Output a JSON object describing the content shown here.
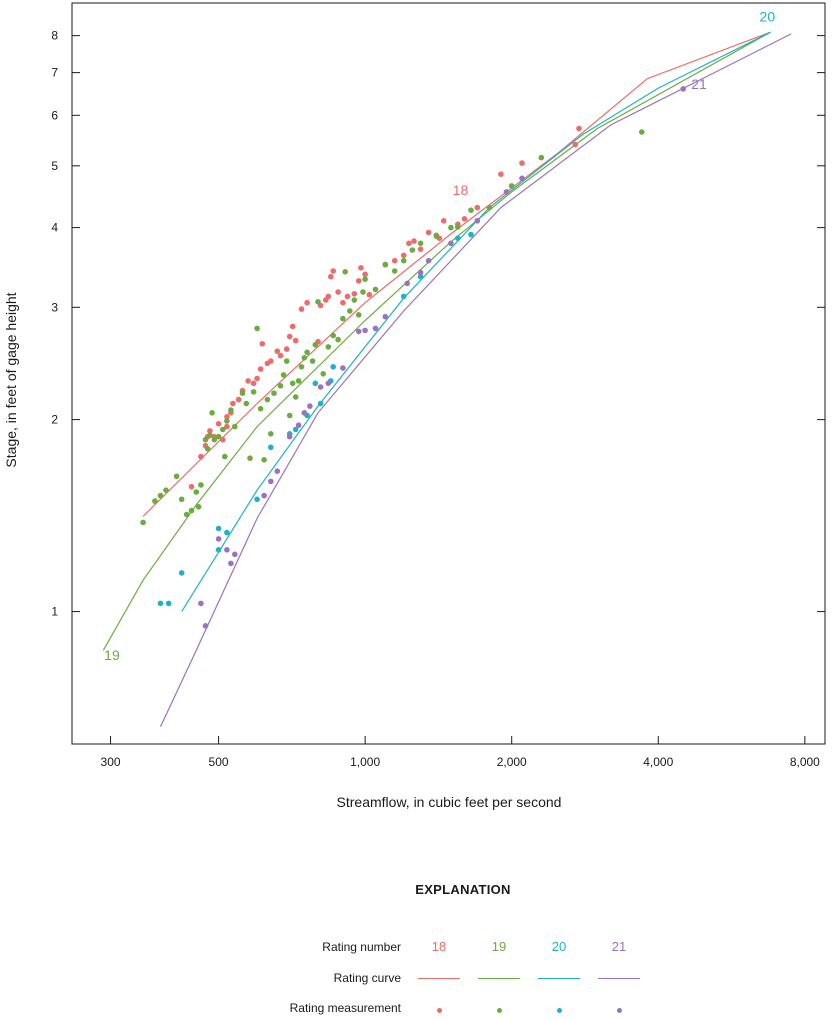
{
  "colors": {
    "18": "#ef6a6a",
    "19": "#6aac3e",
    "20": "#1fb1c7",
    "21": "#9b72c0",
    "axis": "#1a1a1a",
    "tick": "#1a1a1a"
  },
  "chart_data": {
    "type": "scatter",
    "xlabel": "Streamflow, in cubic feet per second",
    "ylabel": "Stage, in  feet of gage height",
    "x_scale": "log",
    "y_scale": "log",
    "xlim": [
      250,
      8800
    ],
    "ylim": [
      0.62,
      9.0
    ],
    "grid": false,
    "x_tick_labels": [
      {
        "value": 300,
        "label": "300"
      },
      {
        "value": 500,
        "label": "500"
      },
      {
        "value": 1000,
        "label": "1,000"
      },
      {
        "value": 2000,
        "label": "2,000"
      },
      {
        "value": 4000,
        "label": "4,000"
      },
      {
        "value": 8000,
        "label": "8,000"
      }
    ],
    "y_tick_labels": [
      {
        "value": 1,
        "label": "1"
      },
      {
        "value": 2,
        "label": "2"
      },
      {
        "value": 3,
        "label": "3"
      },
      {
        "value": 4,
        "label": "4"
      },
      {
        "value": 5,
        "label": "5"
      },
      {
        "value": 6,
        "label": "6"
      },
      {
        "value": 7,
        "label": "7"
      },
      {
        "value": 8,
        "label": "8"
      }
    ],
    "series": [
      {
        "name": "18",
        "color_key": "18",
        "label_at": [
          1570,
          4.5
        ],
        "curve": [
          [
            350,
            1.41
          ],
          [
            600,
            2.12
          ],
          [
            1000,
            3.05
          ],
          [
            1500,
            3.91
          ],
          [
            2500,
            5.25
          ],
          [
            3800,
            6.85
          ],
          [
            6800,
            8.1
          ]
        ],
        "points": [
          [
            440,
            1.57
          ],
          [
            460,
            1.75
          ],
          [
            470,
            1.82
          ],
          [
            475,
            1.88
          ],
          [
            480,
            1.92
          ],
          [
            490,
            1.88
          ],
          [
            500,
            1.97
          ],
          [
            510,
            1.86
          ],
          [
            520,
            1.95
          ],
          [
            520,
            2.02
          ],
          [
            530,
            2.05
          ],
          [
            535,
            2.12
          ],
          [
            550,
            2.15
          ],
          [
            560,
            2.22
          ],
          [
            575,
            2.3
          ],
          [
            590,
            2.28
          ],
          [
            600,
            2.32
          ],
          [
            610,
            2.4
          ],
          [
            615,
            2.63
          ],
          [
            630,
            2.45
          ],
          [
            640,
            2.47
          ],
          [
            660,
            2.56
          ],
          [
            670,
            2.52
          ],
          [
            690,
            2.58
          ],
          [
            700,
            2.7
          ],
          [
            710,
            2.8
          ],
          [
            720,
            2.66
          ],
          [
            740,
            2.98
          ],
          [
            760,
            3.05
          ],
          [
            800,
            2.65
          ],
          [
            810,
            3.02
          ],
          [
            830,
            3.08
          ],
          [
            840,
            3.12
          ],
          [
            850,
            3.35
          ],
          [
            860,
            3.42
          ],
          [
            880,
            3.17
          ],
          [
            900,
            3.05
          ],
          [
            920,
            3.12
          ],
          [
            950,
            3.15
          ],
          [
            970,
            3.3
          ],
          [
            980,
            3.46
          ],
          [
            1000,
            3.38
          ],
          [
            1020,
            3.14
          ],
          [
            1100,
            3.5
          ],
          [
            1150,
            3.55
          ],
          [
            1200,
            3.62
          ],
          [
            1230,
            3.78
          ],
          [
            1260,
            3.81
          ],
          [
            1300,
            3.7
          ],
          [
            1350,
            3.93
          ],
          [
            1400,
            3.89
          ],
          [
            1420,
            3.85
          ],
          [
            1450,
            4.1
          ],
          [
            1550,
            4.05
          ],
          [
            1600,
            4.13
          ],
          [
            1700,
            4.3
          ],
          [
            1900,
            4.85
          ],
          [
            2100,
            5.05
          ],
          [
            2700,
            5.4
          ],
          [
            2750,
            5.72
          ]
        ]
      },
      {
        "name": "19",
        "color_key": "19",
        "label_at": [
          302,
          0.84
        ],
        "curve": [
          [
            290,
            0.87
          ],
          [
            350,
            1.12
          ],
          [
            450,
            1.47
          ],
          [
            600,
            1.95
          ],
          [
            1000,
            2.86
          ],
          [
            1500,
            3.8
          ],
          [
            2000,
            4.55
          ],
          [
            3000,
            5.72
          ],
          [
            6800,
            8.1
          ]
        ],
        "points": [
          [
            350,
            1.38
          ],
          [
            370,
            1.49
          ],
          [
            380,
            1.52
          ],
          [
            390,
            1.55
          ],
          [
            410,
            1.63
          ],
          [
            420,
            1.5
          ],
          [
            430,
            1.42
          ],
          [
            440,
            1.44
          ],
          [
            450,
            1.54
          ],
          [
            455,
            1.46
          ],
          [
            460,
            1.58
          ],
          [
            470,
            1.86
          ],
          [
            475,
            1.8
          ],
          [
            480,
            1.89
          ],
          [
            485,
            2.05
          ],
          [
            490,
            1.86
          ],
          [
            500,
            1.88
          ],
          [
            510,
            1.93
          ],
          [
            515,
            1.75
          ],
          [
            520,
            1.99
          ],
          [
            530,
            2.07
          ],
          [
            540,
            1.95
          ],
          [
            560,
            2.2
          ],
          [
            570,
            2.12
          ],
          [
            580,
            1.74
          ],
          [
            590,
            2.21
          ],
          [
            600,
            2.78
          ],
          [
            610,
            2.08
          ],
          [
            620,
            1.73
          ],
          [
            630,
            2.15
          ],
          [
            640,
            1.9
          ],
          [
            650,
            2.2
          ],
          [
            670,
            2.26
          ],
          [
            680,
            2.35
          ],
          [
            690,
            2.47
          ],
          [
            700,
            2.03
          ],
          [
            710,
            2.28
          ],
          [
            720,
            2.17
          ],
          [
            730,
            2.3
          ],
          [
            740,
            2.42
          ],
          [
            750,
            2.5
          ],
          [
            760,
            2.55
          ],
          [
            780,
            2.47
          ],
          [
            790,
            2.62
          ],
          [
            800,
            3.06
          ],
          [
            820,
            2.36
          ],
          [
            840,
            2.6
          ],
          [
            860,
            2.71
          ],
          [
            880,
            2.67
          ],
          [
            900,
            2.88
          ],
          [
            910,
            3.41
          ],
          [
            930,
            2.96
          ],
          [
            950,
            3.08
          ],
          [
            970,
            2.92
          ],
          [
            990,
            3.17
          ],
          [
            1000,
            3.32
          ],
          [
            1050,
            3.2
          ],
          [
            1100,
            3.5
          ],
          [
            1150,
            3.42
          ],
          [
            1200,
            3.55
          ],
          [
            1250,
            3.69
          ],
          [
            1300,
            3.78
          ],
          [
            1400,
            3.88
          ],
          [
            1500,
            4.0
          ],
          [
            1550,
            4.01
          ],
          [
            1650,
            4.26
          ],
          [
            1800,
            4.3
          ],
          [
            2000,
            4.65
          ],
          [
            2300,
            5.15
          ],
          [
            3700,
            5.65
          ]
        ]
      },
      {
        "name": "20",
        "color_key": "20",
        "label_at": [
          6700,
          8.42
        ],
        "curve": [
          [
            420,
            1.0
          ],
          [
            600,
            1.55
          ],
          [
            800,
            2.1
          ],
          [
            1200,
            3.1
          ],
          [
            1800,
            4.3
          ],
          [
            2800,
            5.6
          ],
          [
            4000,
            6.62
          ],
          [
            6800,
            8.1
          ]
        ],
        "points": [
          [
            380,
            1.03
          ],
          [
            395,
            1.03
          ],
          [
            420,
            1.15
          ],
          [
            500,
            1.35
          ],
          [
            500,
            1.25
          ],
          [
            520,
            1.33
          ],
          [
            600,
            1.5
          ],
          [
            640,
            1.81
          ],
          [
            700,
            1.9
          ],
          [
            720,
            1.93
          ],
          [
            760,
            2.03
          ],
          [
            790,
            2.28
          ],
          [
            810,
            2.12
          ],
          [
            850,
            2.3
          ],
          [
            860,
            2.42
          ],
          [
            1200,
            3.12
          ],
          [
            1300,
            3.35
          ],
          [
            1550,
            3.85
          ],
          [
            1650,
            3.9
          ]
        ]
      },
      {
        "name": "21",
        "color_key": "21",
        "label_at": [
          4850,
          6.6
        ],
        "curve": [
          [
            380,
            0.66
          ],
          [
            450,
            0.87
          ],
          [
            600,
            1.4
          ],
          [
            800,
            2.05
          ],
          [
            1200,
            2.96
          ],
          [
            1900,
            4.3
          ],
          [
            3200,
            5.8
          ],
          [
            7500,
            8.05
          ]
        ],
        "points": [
          [
            460,
            1.03
          ],
          [
            470,
            0.95
          ],
          [
            500,
            1.3
          ],
          [
            520,
            1.25
          ],
          [
            530,
            1.19
          ],
          [
            540,
            1.23
          ],
          [
            620,
            1.52
          ],
          [
            640,
            1.6
          ],
          [
            660,
            1.66
          ],
          [
            700,
            1.88
          ],
          [
            730,
            1.96
          ],
          [
            750,
            2.05
          ],
          [
            770,
            2.1
          ],
          [
            810,
            2.25
          ],
          [
            840,
            2.28
          ],
          [
            900,
            2.41
          ],
          [
            970,
            2.75
          ],
          [
            1000,
            2.76
          ],
          [
            1050,
            2.78
          ],
          [
            1100,
            2.9
          ],
          [
            1220,
            3.27
          ],
          [
            1300,
            3.4
          ],
          [
            1350,
            3.55
          ],
          [
            1500,
            3.78
          ],
          [
            1700,
            4.1
          ],
          [
            1950,
            4.55
          ],
          [
            2100,
            4.78
          ],
          [
            4500,
            6.6
          ]
        ]
      }
    ]
  },
  "legend": {
    "title": "EXPLANATION",
    "row_labels": {
      "rating_number": "Rating number",
      "rating_curve": "Rating curve",
      "rating_measurement": "Rating measurement"
    },
    "numbers": [
      "18",
      "19",
      "20",
      "21"
    ]
  }
}
